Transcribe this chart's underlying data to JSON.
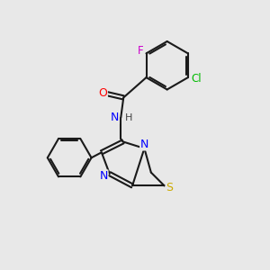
{
  "background_color": "#e8e8e8",
  "bond_color": "#1a1a1a",
  "atom_colors": {
    "O": "#ff0000",
    "N": "#0000ff",
    "S": "#ccaa00",
    "F": "#cc00cc",
    "Cl": "#00bb00",
    "H": "#444444"
  },
  "bond_lw": 1.5,
  "font_size": 8.5
}
